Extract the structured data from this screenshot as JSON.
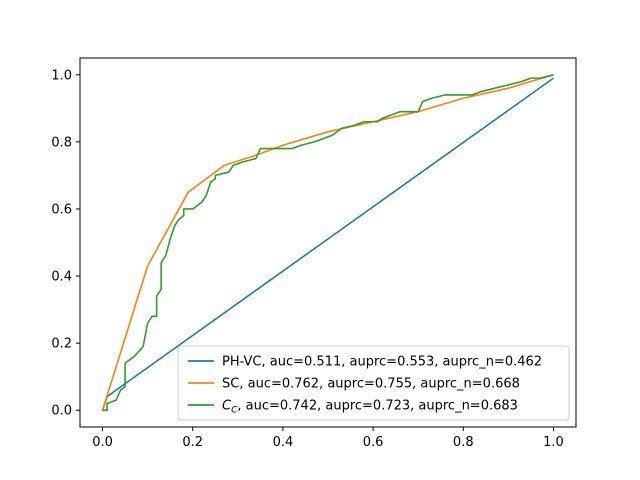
{
  "chart_data": {
    "type": "line",
    "title": "",
    "xlabel": "",
    "ylabel": "",
    "xlim": [
      -0.05,
      1.05
    ],
    "ylim": [
      -0.05,
      1.05
    ],
    "x_ticks": [
      "0.0",
      "0.2",
      "0.4",
      "0.6",
      "0.8",
      "1.0"
    ],
    "y_ticks": [
      "0.0",
      "0.2",
      "0.4",
      "0.6",
      "0.8",
      "1.0"
    ],
    "grid": false,
    "legend_position": "lower-right",
    "series": [
      {
        "name": "PH-VC, auc=0.511, auprc=0.553, auprc_n=0.462",
        "color": "#1f77b4",
        "points": [
          [
            0,
            0
          ],
          [
            0.01,
            0.04
          ],
          [
            0.03,
            0.06
          ],
          [
            1.0,
            0.99
          ]
        ]
      },
      {
        "name": "SC, auc=0.762, auprc=0.755, auprc_n=0.668",
        "color": "#ff7f0e",
        "points": [
          [
            0,
            0
          ],
          [
            0.1,
            0.43
          ],
          [
            0.19,
            0.65
          ],
          [
            0.27,
            0.73
          ],
          [
            0.34,
            0.76
          ],
          [
            0.4,
            0.79
          ],
          [
            0.5,
            0.83
          ],
          [
            0.6,
            0.86
          ],
          [
            0.7,
            0.89
          ],
          [
            0.8,
            0.93
          ],
          [
            0.9,
            0.96
          ],
          [
            1.0,
            1.0
          ]
        ]
      },
      {
        "name": "C_C, auc=0.742, auprc=0.723, auprc_n=0.683",
        "color": "#2ca02c",
        "points": [
          [
            0,
            0
          ],
          [
            0.01,
            0
          ],
          [
            0.01,
            0.02
          ],
          [
            0.03,
            0.03
          ],
          [
            0.04,
            0.06
          ],
          [
            0.05,
            0.07
          ],
          [
            0.05,
            0.14
          ],
          [
            0.06,
            0.15
          ],
          [
            0.07,
            0.16
          ],
          [
            0.09,
            0.19
          ],
          [
            0.1,
            0.26
          ],
          [
            0.11,
            0.28
          ],
          [
            0.12,
            0.28
          ],
          [
            0.12,
            0.34
          ],
          [
            0.13,
            0.36
          ],
          [
            0.13,
            0.44
          ],
          [
            0.14,
            0.46
          ],
          [
            0.15,
            0.51
          ],
          [
            0.16,
            0.55
          ],
          [
            0.17,
            0.57
          ],
          [
            0.18,
            0.58
          ],
          [
            0.18,
            0.6
          ],
          [
            0.2,
            0.6
          ],
          [
            0.21,
            0.61
          ],
          [
            0.22,
            0.62
          ],
          [
            0.23,
            0.64
          ],
          [
            0.24,
            0.68
          ],
          [
            0.25,
            0.69
          ],
          [
            0.25,
            0.7
          ],
          [
            0.28,
            0.71
          ],
          [
            0.29,
            0.73
          ],
          [
            0.31,
            0.74
          ],
          [
            0.34,
            0.75
          ],
          [
            0.35,
            0.78
          ],
          [
            0.38,
            0.78
          ],
          [
            0.42,
            0.78
          ],
          [
            0.44,
            0.79
          ],
          [
            0.47,
            0.8
          ],
          [
            0.51,
            0.82
          ],
          [
            0.53,
            0.84
          ],
          [
            0.56,
            0.85
          ],
          [
            0.58,
            0.86
          ],
          [
            0.61,
            0.86
          ],
          [
            0.62,
            0.87
          ],
          [
            0.64,
            0.88
          ],
          [
            0.66,
            0.89
          ],
          [
            0.7,
            0.89
          ],
          [
            0.71,
            0.92
          ],
          [
            0.73,
            0.93
          ],
          [
            0.76,
            0.94
          ],
          [
            0.8,
            0.94
          ],
          [
            0.82,
            0.94
          ],
          [
            0.84,
            0.95
          ],
          [
            0.87,
            0.96
          ],
          [
            0.9,
            0.97
          ],
          [
            0.93,
            0.98
          ],
          [
            0.95,
            0.99
          ],
          [
            0.97,
            0.99
          ],
          [
            1.0,
            1.0
          ]
        ]
      }
    ],
    "legend": [
      {
        "prefix": "PH-VC",
        "prefix_sub": "",
        "rest": ", auc=0.511, auprc=0.553, auprc_n=0.462"
      },
      {
        "prefix": "SC",
        "prefix_sub": "",
        "rest": ", auc=0.762, auprc=0.755, auprc_n=0.668"
      },
      {
        "prefix": "C",
        "prefix_sub": "C",
        "rest": ", auc=0.742, auprc=0.723, auprc_n=0.683"
      }
    ]
  }
}
